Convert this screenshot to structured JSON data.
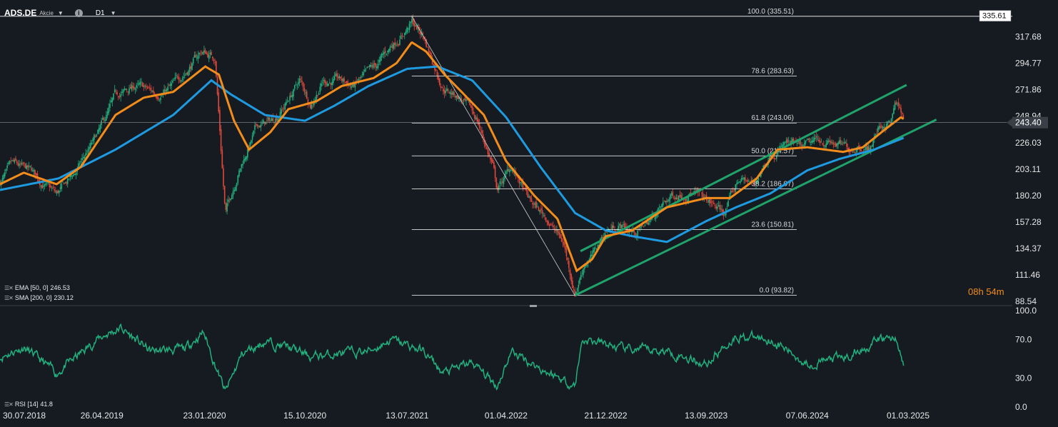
{
  "toolbar": {
    "symbol": "ADS.DE",
    "symbol_type": "Akcie",
    "timeframe": "D1",
    "symbol_menu_icon": "chevron-down-icon",
    "timeframe_menu_icon": "chevron-down-icon",
    "info_icon": "info-icon"
  },
  "indicators": {
    "ema": {
      "label": "EMA [50, 0]",
      "value": "246.53",
      "color": "#f28c1b"
    },
    "sma": {
      "label": "SMA [200, 0]",
      "value": "230.12",
      "color": "#1e9be0"
    },
    "rsi": {
      "label": "RSI [14]",
      "value": "41.8",
      "color": "#22b07d"
    }
  },
  "countdown": {
    "hours": "08",
    "h": "h",
    "minutes": "54",
    "m": "m"
  },
  "colors": {
    "background": "#161b22",
    "candle_up": "#22b07d",
    "candle_down": "#e0483c",
    "ema": "#f28c1b",
    "sma": "#1e9be0",
    "channel": "#1fa36b",
    "fib": "#ffffff"
  },
  "chart_data": [
    {
      "type": "candlestick",
      "instrument": "ADS.DE",
      "timeframe": "D1",
      "price_axis": {
        "ylim": [
          88.54,
          336.0
        ],
        "ticks": [
          "317.68",
          "294.77",
          "271.86",
          "248.94",
          "226.03",
          "203.11",
          "180.20",
          "157.28",
          "134.37",
          "111.46",
          "88.54"
        ]
      },
      "time_axis": {
        "xlim": [
          "2018-07-30",
          "2025-03-01"
        ],
        "ticks": [
          "30.07.2018",
          "26.04.2019",
          "23.01.2020",
          "15.10.2020",
          "13.07.2021",
          "01.04.2022",
          "21.12.2022",
          "13.09.2023",
          "07.06.2024",
          "01.03.2025"
        ]
      },
      "price_markers": [
        {
          "label": "335.61",
          "value": 335.61
        },
        {
          "label": "243.40",
          "value": 243.4
        }
      ],
      "approx_close_path": [
        [
          "2018-07-30",
          192
        ],
        [
          "2018-09-01",
          205
        ],
        [
          "2018-10-20",
          200
        ],
        [
          "2018-12-27",
          180
        ],
        [
          "2019-02-15",
          200
        ],
        [
          "2019-04-20",
          235
        ],
        [
          "2019-06-01",
          265
        ],
        [
          "2019-07-25",
          275
        ],
        [
          "2019-09-15",
          268
        ],
        [
          "2019-11-01",
          275
        ],
        [
          "2020-01-15",
          305
        ],
        [
          "2020-02-20",
          300
        ],
        [
          "2020-03-18",
          165
        ],
        [
          "2020-04-20",
          200
        ],
        [
          "2020-06-10",
          240
        ],
        [
          "2020-07-20",
          245
        ],
        [
          "2020-08-25",
          260
        ],
        [
          "2020-10-01",
          280
        ],
        [
          "2020-10-30",
          260
        ],
        [
          "2020-12-01",
          280
        ],
        [
          "2021-01-10",
          280
        ],
        [
          "2021-02-20",
          275
        ],
        [
          "2021-04-20",
          290
        ],
        [
          "2021-06-01",
          310
        ],
        [
          "2021-07-25",
          330
        ],
        [
          "2021-08-25",
          318
        ],
        [
          "2021-10-15",
          275
        ],
        [
          "2021-11-30",
          265
        ],
        [
          "2022-01-15",
          245
        ],
        [
          "2022-02-25",
          205
        ],
        [
          "2022-03-08",
          185
        ],
        [
          "2022-04-15",
          205
        ],
        [
          "2022-06-01",
          175
        ],
        [
          "2022-07-20",
          160
        ],
        [
          "2022-09-01",
          138
        ],
        [
          "2022-09-30",
          96
        ],
        [
          "2022-10-25",
          122
        ],
        [
          "2022-11-20",
          130
        ],
        [
          "2022-12-21",
          150
        ],
        [
          "2023-01-25",
          155
        ],
        [
          "2023-03-10",
          148
        ],
        [
          "2023-04-20",
          160
        ],
        [
          "2023-06-15",
          180
        ],
        [
          "2023-08-01",
          185
        ],
        [
          "2023-09-13",
          175
        ],
        [
          "2023-10-30",
          165
        ],
        [
          "2023-12-10",
          195
        ],
        [
          "2024-01-20",
          190
        ],
        [
          "2024-02-29",
          218
        ],
        [
          "2024-04-10",
          225
        ],
        [
          "2024-05-20",
          220
        ],
        [
          "2024-06-07",
          222
        ],
        [
          "2024-07-15",
          228
        ],
        [
          "2024-08-15",
          225
        ],
        [
          "2024-09-25",
          220
        ],
        [
          "2024-10-20",
          225
        ],
        [
          "2024-11-20",
          222
        ],
        [
          "2024-12-15",
          240
        ],
        [
          "2025-01-15",
          245
        ],
        [
          "2025-01-28",
          260
        ],
        [
          "2025-02-10",
          250
        ],
        [
          "2025-02-17",
          243.4
        ]
      ],
      "ema_50_path": [
        [
          "2018-07-30",
          190
        ],
        [
          "2018-10-01",
          200
        ],
        [
          "2018-12-27",
          190
        ],
        [
          "2019-03-01",
          205
        ],
        [
          "2019-06-01",
          250
        ],
        [
          "2019-08-15",
          265
        ],
        [
          "2019-11-01",
          270
        ],
        [
          "2020-01-25",
          292
        ],
        [
          "2020-03-01",
          285
        ],
        [
          "2020-04-10",
          245
        ],
        [
          "2020-05-20",
          220
        ],
        [
          "2020-07-15",
          235
        ],
        [
          "2020-09-01",
          255
        ],
        [
          "2020-11-15",
          262
        ],
        [
          "2021-01-20",
          275
        ],
        [
          "2021-04-15",
          282
        ],
        [
          "2021-06-15",
          295
        ],
        [
          "2021-07-25",
          313
        ],
        [
          "2021-09-01",
          305
        ],
        [
          "2021-10-20",
          285
        ],
        [
          "2021-12-10",
          268
        ],
        [
          "2022-02-01",
          250
        ],
        [
          "2022-04-01",
          210
        ],
        [
          "2022-06-15",
          180
        ],
        [
          "2022-08-15",
          160
        ],
        [
          "2022-10-05",
          115
        ],
        [
          "2022-11-15",
          125
        ],
        [
          "2022-12-21",
          145
        ],
        [
          "2023-03-01",
          150
        ],
        [
          "2023-06-01",
          170
        ],
        [
          "2023-09-13",
          178
        ],
        [
          "2023-11-15",
          178
        ],
        [
          "2024-01-25",
          195
        ],
        [
          "2024-03-20",
          220
        ],
        [
          "2024-06-07",
          222
        ],
        [
          "2024-09-10",
          218
        ],
        [
          "2024-11-01",
          222
        ],
        [
          "2025-01-01",
          238
        ],
        [
          "2025-02-10",
          248
        ],
        [
          "2025-02-17",
          246.53
        ]
      ],
      "sma_200_path": [
        [
          "2018-07-30",
          185
        ],
        [
          "2019-01-01",
          195
        ],
        [
          "2019-06-01",
          220
        ],
        [
          "2019-11-01",
          250
        ],
        [
          "2020-02-10",
          280
        ],
        [
          "2020-04-01",
          268
        ],
        [
          "2020-07-01",
          250
        ],
        [
          "2020-10-15",
          245
        ],
        [
          "2021-01-01",
          258
        ],
        [
          "2021-04-01",
          275
        ],
        [
          "2021-07-13",
          290
        ],
        [
          "2021-10-01",
          292
        ],
        [
          "2022-01-01",
          280
        ],
        [
          "2022-04-01",
          248
        ],
        [
          "2022-07-01",
          205
        ],
        [
          "2022-10-01",
          165
        ],
        [
          "2022-12-21",
          150
        ],
        [
          "2023-03-01",
          145
        ],
        [
          "2023-06-01",
          140
        ],
        [
          "2023-09-13",
          158
        ],
        [
          "2023-12-01",
          170
        ],
        [
          "2024-03-01",
          182
        ],
        [
          "2024-06-07",
          202
        ],
        [
          "2024-09-01",
          212
        ],
        [
          "2024-12-01",
          220
        ],
        [
          "2025-02-17",
          230.12
        ]
      ],
      "fibonacci_retracement": {
        "high": {
          "date": "2021-07-25",
          "value": 335.51
        },
        "low": {
          "date": "2022-09-30",
          "value": 93.82
        },
        "levels": [
          {
            "label": "100.0 (335.51)",
            "value": 335.51
          },
          {
            "label": "78.6 (283.63)",
            "value": 283.63
          },
          {
            "label": "61.8 (243.06)",
            "value": 243.06
          },
          {
            "label": "50.0 (214.57)",
            "value": 214.57
          },
          {
            "label": "38.2 (186.07)",
            "value": 186.07
          },
          {
            "label": "23.6 (150.81)",
            "value": 150.81
          },
          {
            "label": "0.0 (93.82)",
            "value": 93.82
          }
        ]
      },
      "trend_channel": {
        "upper": [
          [
            "2022-10-15",
            132
          ],
          [
            "2025-02-25",
            276
          ]
        ],
        "lower": [
          [
            "2022-10-01",
            93.8
          ],
          [
            "2025-05-15",
            246
          ]
        ]
      }
    },
    {
      "type": "line",
      "name": "RSI [14]",
      "ylim": [
        0,
        100
      ],
      "ticks": [
        "100.0",
        "70.0",
        "30.0",
        "0.0"
      ],
      "approx_path": [
        [
          "2018-07-30",
          52
        ],
        [
          "2018-10-01",
          62
        ],
        [
          "2018-12-27",
          35
        ],
        [
          "2019-04-20",
          72
        ],
        [
          "2019-06-15",
          82
        ],
        [
          "2019-09-01",
          58
        ],
        [
          "2019-12-01",
          60
        ],
        [
          "2020-01-20",
          78
        ],
        [
          "2020-03-18",
          15
        ],
        [
          "2020-05-01",
          55
        ],
        [
          "2020-07-01",
          68
        ],
        [
          "2020-09-01",
          62
        ],
        [
          "2020-11-01",
          52
        ],
        [
          "2021-01-01",
          55
        ],
        [
          "2021-04-01",
          58
        ],
        [
          "2021-06-01",
          70
        ],
        [
          "2021-08-25",
          58
        ],
        [
          "2021-10-15",
          35
        ],
        [
          "2022-01-01",
          46
        ],
        [
          "2022-03-08",
          22
        ],
        [
          "2022-04-15",
          58
        ],
        [
          "2022-07-01",
          40
        ],
        [
          "2022-09-30",
          22
        ],
        [
          "2022-10-20",
          70
        ],
        [
          "2022-12-21",
          65
        ],
        [
          "2023-02-01",
          60
        ],
        [
          "2023-06-01",
          58
        ],
        [
          "2023-09-13",
          45
        ],
        [
          "2023-12-01",
          74
        ],
        [
          "2024-02-29",
          70
        ],
        [
          "2024-06-07",
          45
        ],
        [
          "2024-09-25",
          52
        ],
        [
          "2024-12-15",
          70
        ],
        [
          "2025-01-28",
          72
        ],
        [
          "2025-02-17",
          41.8
        ]
      ]
    }
  ]
}
